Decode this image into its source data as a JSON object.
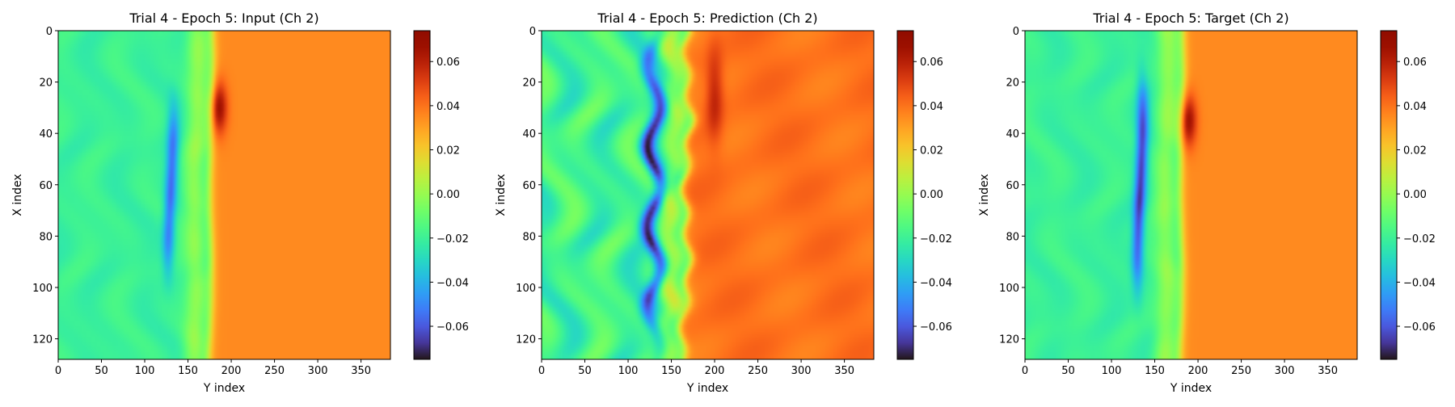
{
  "chart_data": [
    {
      "type": "heatmap",
      "title": "Trial 4 - Epoch 5: Input (Ch 2)",
      "xlabel": "Y index",
      "ylabel": "X index",
      "xlim": [
        0,
        384
      ],
      "ylim": [
        128,
        0
      ],
      "x_ticks": [
        0,
        50,
        100,
        150,
        200,
        250,
        300,
        350
      ],
      "y_ticks": [
        0,
        20,
        40,
        60,
        80,
        100,
        120
      ],
      "colorbar_range": [
        -0.075,
        0.074
      ],
      "colorbar_ticks": [
        "0.06",
        "0.04",
        "0.02",
        "0.00",
        "−0.02",
        "−0.04",
        "−0.06"
      ],
      "colorbar_tick_values": [
        0.06,
        0.04,
        0.02,
        0.0,
        -0.02,
        -0.04,
        -0.06
      ],
      "colormap": "turbo",
      "features": {
        "left_value": -0.02,
        "right_value": 0.035,
        "front_y_top": 178,
        "front_y_bottom": 175,
        "blue_streak": {
          "y": 130,
          "x_range": [
            30,
            95
          ],
          "min": -0.055
        },
        "red_spot": {
          "y": 185,
          "x": 30,
          "max": 0.07
        }
      }
    },
    {
      "type": "heatmap",
      "title": "Trial 4 - Epoch 5: Prediction (Ch 2)",
      "xlabel": "Y index",
      "ylabel": "X index",
      "xlim": [
        0,
        384
      ],
      "ylim": [
        128,
        0
      ],
      "x_ticks": [
        0,
        50,
        100,
        150,
        200,
        250,
        300,
        350
      ],
      "y_ticks": [
        0,
        20,
        40,
        60,
        80,
        100,
        120
      ],
      "colorbar_range": [
        -0.075,
        0.074
      ],
      "colorbar_ticks": [
        "0.06",
        "0.04",
        "0.02",
        "0.00",
        "−0.02",
        "−0.04",
        "−0.06"
      ],
      "colorbar_tick_values": [
        0.06,
        0.04,
        0.02,
        0.0,
        -0.02,
        -0.04,
        -0.06
      ],
      "colormap": "turbo",
      "features": {
        "left_value": -0.018,
        "right_value": 0.04,
        "front_y_top": 170,
        "front_y_bottom": 165,
        "blue_streak": {
          "y": 130,
          "x_range": [
            5,
            120
          ],
          "min": -0.07
        },
        "red_spot": {
          "y": 200,
          "x": 25,
          "max": 0.06
        }
      }
    },
    {
      "type": "heatmap",
      "title": "Trial 4 - Epoch 5: Target (Ch 2)",
      "xlabel": "Y index",
      "ylabel": "X index",
      "xlim": [
        0,
        384
      ],
      "ylim": [
        128,
        0
      ],
      "x_ticks": [
        0,
        50,
        100,
        150,
        200,
        250,
        300,
        350
      ],
      "y_ticks": [
        0,
        20,
        40,
        60,
        80,
        100,
        120
      ],
      "colorbar_range": [
        -0.075,
        0.074
      ],
      "colorbar_ticks": [
        "0.06",
        "0.04",
        "0.02",
        "0.00",
        "−0.02",
        "−0.04",
        "−0.06"
      ],
      "colorbar_tick_values": [
        0.06,
        0.04,
        0.02,
        0.0,
        -0.02,
        -0.04,
        -0.06
      ],
      "colormap": "turbo",
      "features": {
        "left_value": -0.02,
        "right_value": 0.035,
        "front_y_top": 182,
        "front_y_bottom": 180,
        "blue_streak": {
          "y": 133,
          "x_range": [
            20,
            100
          ],
          "min": -0.065
        },
        "red_spot": {
          "y": 188,
          "x": 35,
          "max": 0.07
        }
      }
    }
  ]
}
